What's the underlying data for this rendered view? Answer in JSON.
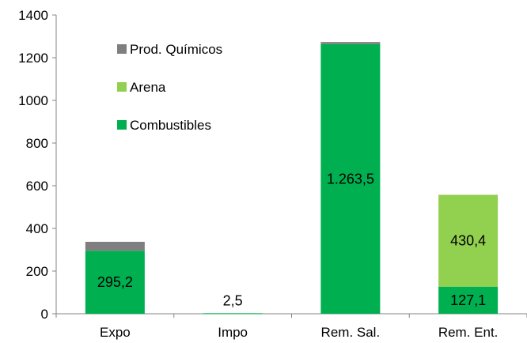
{
  "chart_data": {
    "type": "bar",
    "stacked": true,
    "title": "",
    "xlabel": "",
    "ylabel": "",
    "ylim": [
      0,
      1400
    ],
    "yticks": [
      0,
      200,
      400,
      600,
      800,
      1000,
      1200,
      1400
    ],
    "categories": [
      "Expo",
      "Impo",
      "Rem. Sal.",
      "Rem. Ent."
    ],
    "series": [
      {
        "name": "Combustibles",
        "color": "#00b050",
        "values": [
          295.2,
          2.5,
          1263.5,
          127.1
        ],
        "labels": [
          "295,2",
          "2,5",
          "1.263,5",
          "127,1"
        ]
      },
      {
        "name": "Arena",
        "color": "#92d050",
        "values": [
          0,
          0,
          0,
          430.4
        ],
        "labels": [
          "",
          "",
          "",
          "430,4"
        ]
      },
      {
        "name": "Prod. Químicos",
        "color": "#7f7f7f",
        "values": [
          42,
          0,
          10,
          0
        ],
        "labels": [
          "",
          "",
          "",
          ""
        ]
      }
    ],
    "legend": {
      "position": "top-left, inside plot",
      "entries": [
        "Prod. Químicos",
        "Arena",
        "Combustibles"
      ]
    },
    "grid": false
  }
}
